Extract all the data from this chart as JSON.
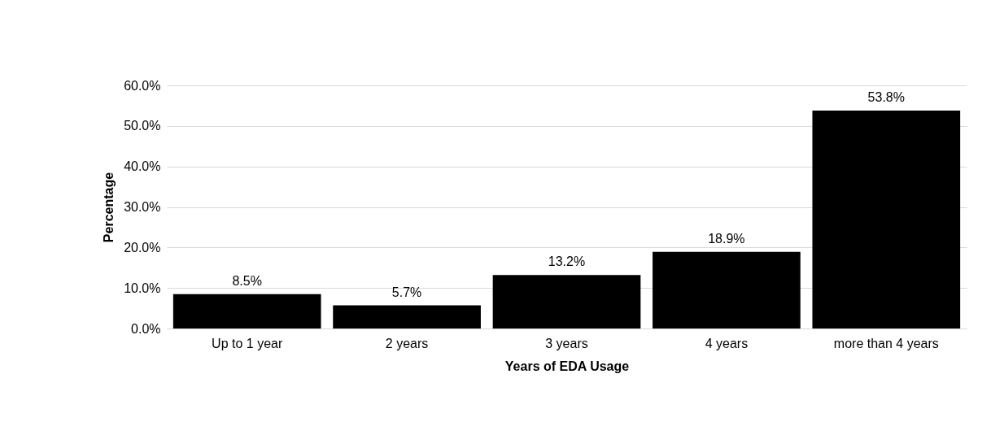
{
  "chart_data": {
    "type": "bar",
    "xlabel": "Years of EDA Usage",
    "ylabel": "Percentage",
    "categories": [
      "Up to 1 year",
      "2 years",
      "3 years",
      "4 years",
      "more than 4 years"
    ],
    "values": [
      8.5,
      5.7,
      13.2,
      18.9,
      53.8
    ],
    "value_labels": [
      "8.5%",
      "5.7%",
      "13.2%",
      "18.9%",
      "53.8%"
    ],
    "color": "#000000",
    "ylim": [
      0,
      60
    ],
    "yticks": [
      {
        "value": 0,
        "label": "0.0%"
      },
      {
        "value": 10,
        "label": "10.0%"
      },
      {
        "value": 20,
        "label": "20.0%"
      },
      {
        "value": 30,
        "label": "30.0%"
      },
      {
        "value": 40,
        "label": "40.0%"
      },
      {
        "value": 50,
        "label": "50.0%"
      },
      {
        "value": 60,
        "label": "60.0%"
      }
    ],
    "grid": "y"
  }
}
